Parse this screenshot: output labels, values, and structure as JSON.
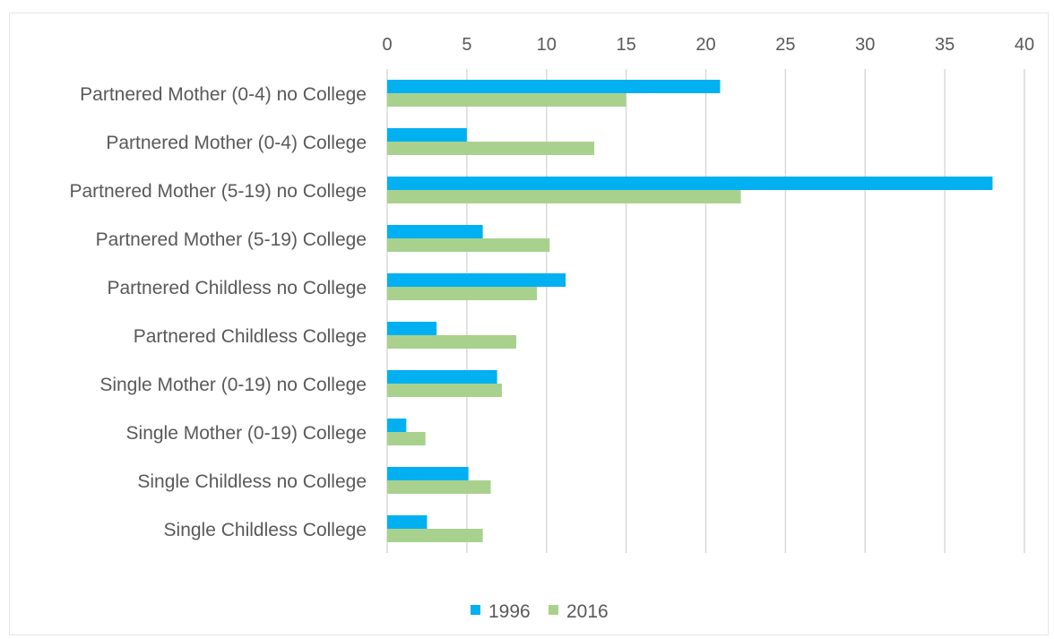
{
  "chart_data": {
    "type": "bar",
    "orientation": "horizontal",
    "categories": [
      "Partnered Mother (0-4) no College",
      "Partnered Mother (0-4) College",
      "Partnered Mother (5-19) no College",
      "Partnered Mother (5-19) College",
      "Partnered Childless no College",
      "Partnered Childless College",
      "Single Mother (0-19) no College",
      "Single Mother (0-19) College",
      "Single Childless no College",
      "Single Childless College"
    ],
    "series": [
      {
        "name": "1996",
        "color": "#00b0f0",
        "values": [
          20.9,
          5.0,
          38.0,
          6.0,
          11.2,
          3.1,
          6.9,
          1.2,
          5.1,
          2.5
        ]
      },
      {
        "name": "2016",
        "color": "#a9d18e",
        "values": [
          15.0,
          13.0,
          22.2,
          10.2,
          9.4,
          8.1,
          7.2,
          2.4,
          6.5,
          6.0
        ]
      }
    ],
    "xlim": [
      0,
      40
    ],
    "xticks": [
      0,
      5,
      10,
      15,
      20,
      25,
      30,
      35,
      40
    ],
    "x_axis_position": "top",
    "grid": true,
    "legend_position": "bottom"
  },
  "colors": {
    "gridline": "#d9d9d9",
    "text": "#595959"
  }
}
